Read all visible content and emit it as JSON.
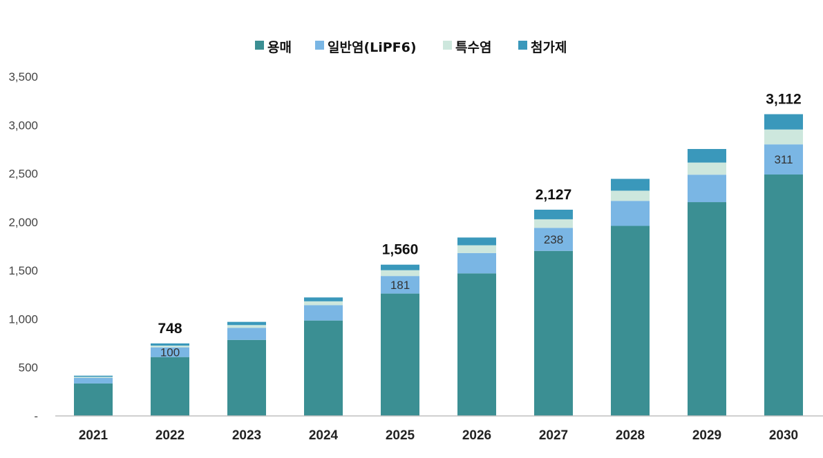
{
  "chart_data": {
    "type": "bar",
    "stacked": true,
    "categories": [
      "2021",
      "2022",
      "2023",
      "2024",
      "2025",
      "2026",
      "2027",
      "2028",
      "2029",
      "2030"
    ],
    "series": [
      {
        "name": "용매",
        "color": "#3b8f93",
        "values": [
          335,
          607,
          784,
          984,
          1262,
          1470,
          1702,
          1960,
          2205,
          2490
        ]
      },
      {
        "name": "일반염(LiPF6)",
        "color": "#7ab6e4",
        "values": [
          58,
          100,
          125,
          158,
          181,
          210,
          238,
          258,
          283,
          311
        ]
      },
      {
        "name": "특수염",
        "color": "#cde7dd",
        "values": [
          10,
          18,
          28,
          40,
          60,
          80,
          88,
          105,
          125,
          153
        ]
      },
      {
        "name": "첨가제",
        "color": "#3a98bb",
        "values": [
          12,
          23,
          33,
          40,
          57,
          80,
          99,
          122,
          140,
          158
        ]
      }
    ],
    "totals": [
      "",
      "748",
      "",
      "",
      "1,560",
      "",
      "2,127",
      "",
      "",
      "3,112"
    ],
    "segment_labels": {
      "series": 1,
      "labels": [
        "",
        "100",
        "",
        "",
        "181",
        "",
        "238",
        "",
        "",
        "311"
      ]
    },
    "yticks": [
      {
        "value": 0,
        "label": "-"
      },
      {
        "value": 500,
        "label": "500"
      },
      {
        "value": 1000,
        "label": "1,000"
      },
      {
        "value": 1500,
        "label": "1,500"
      },
      {
        "value": 2000,
        "label": "2,000"
      },
      {
        "value": 2500,
        "label": "2,500"
      },
      {
        "value": 3000,
        "label": "3,000"
      },
      {
        "value": 3500,
        "label": "3,500"
      }
    ],
    "ylim": [
      0,
      3500
    ],
    "grid": false,
    "legend_position": "top-center",
    "title": "",
    "xlabel": "",
    "ylabel": ""
  }
}
